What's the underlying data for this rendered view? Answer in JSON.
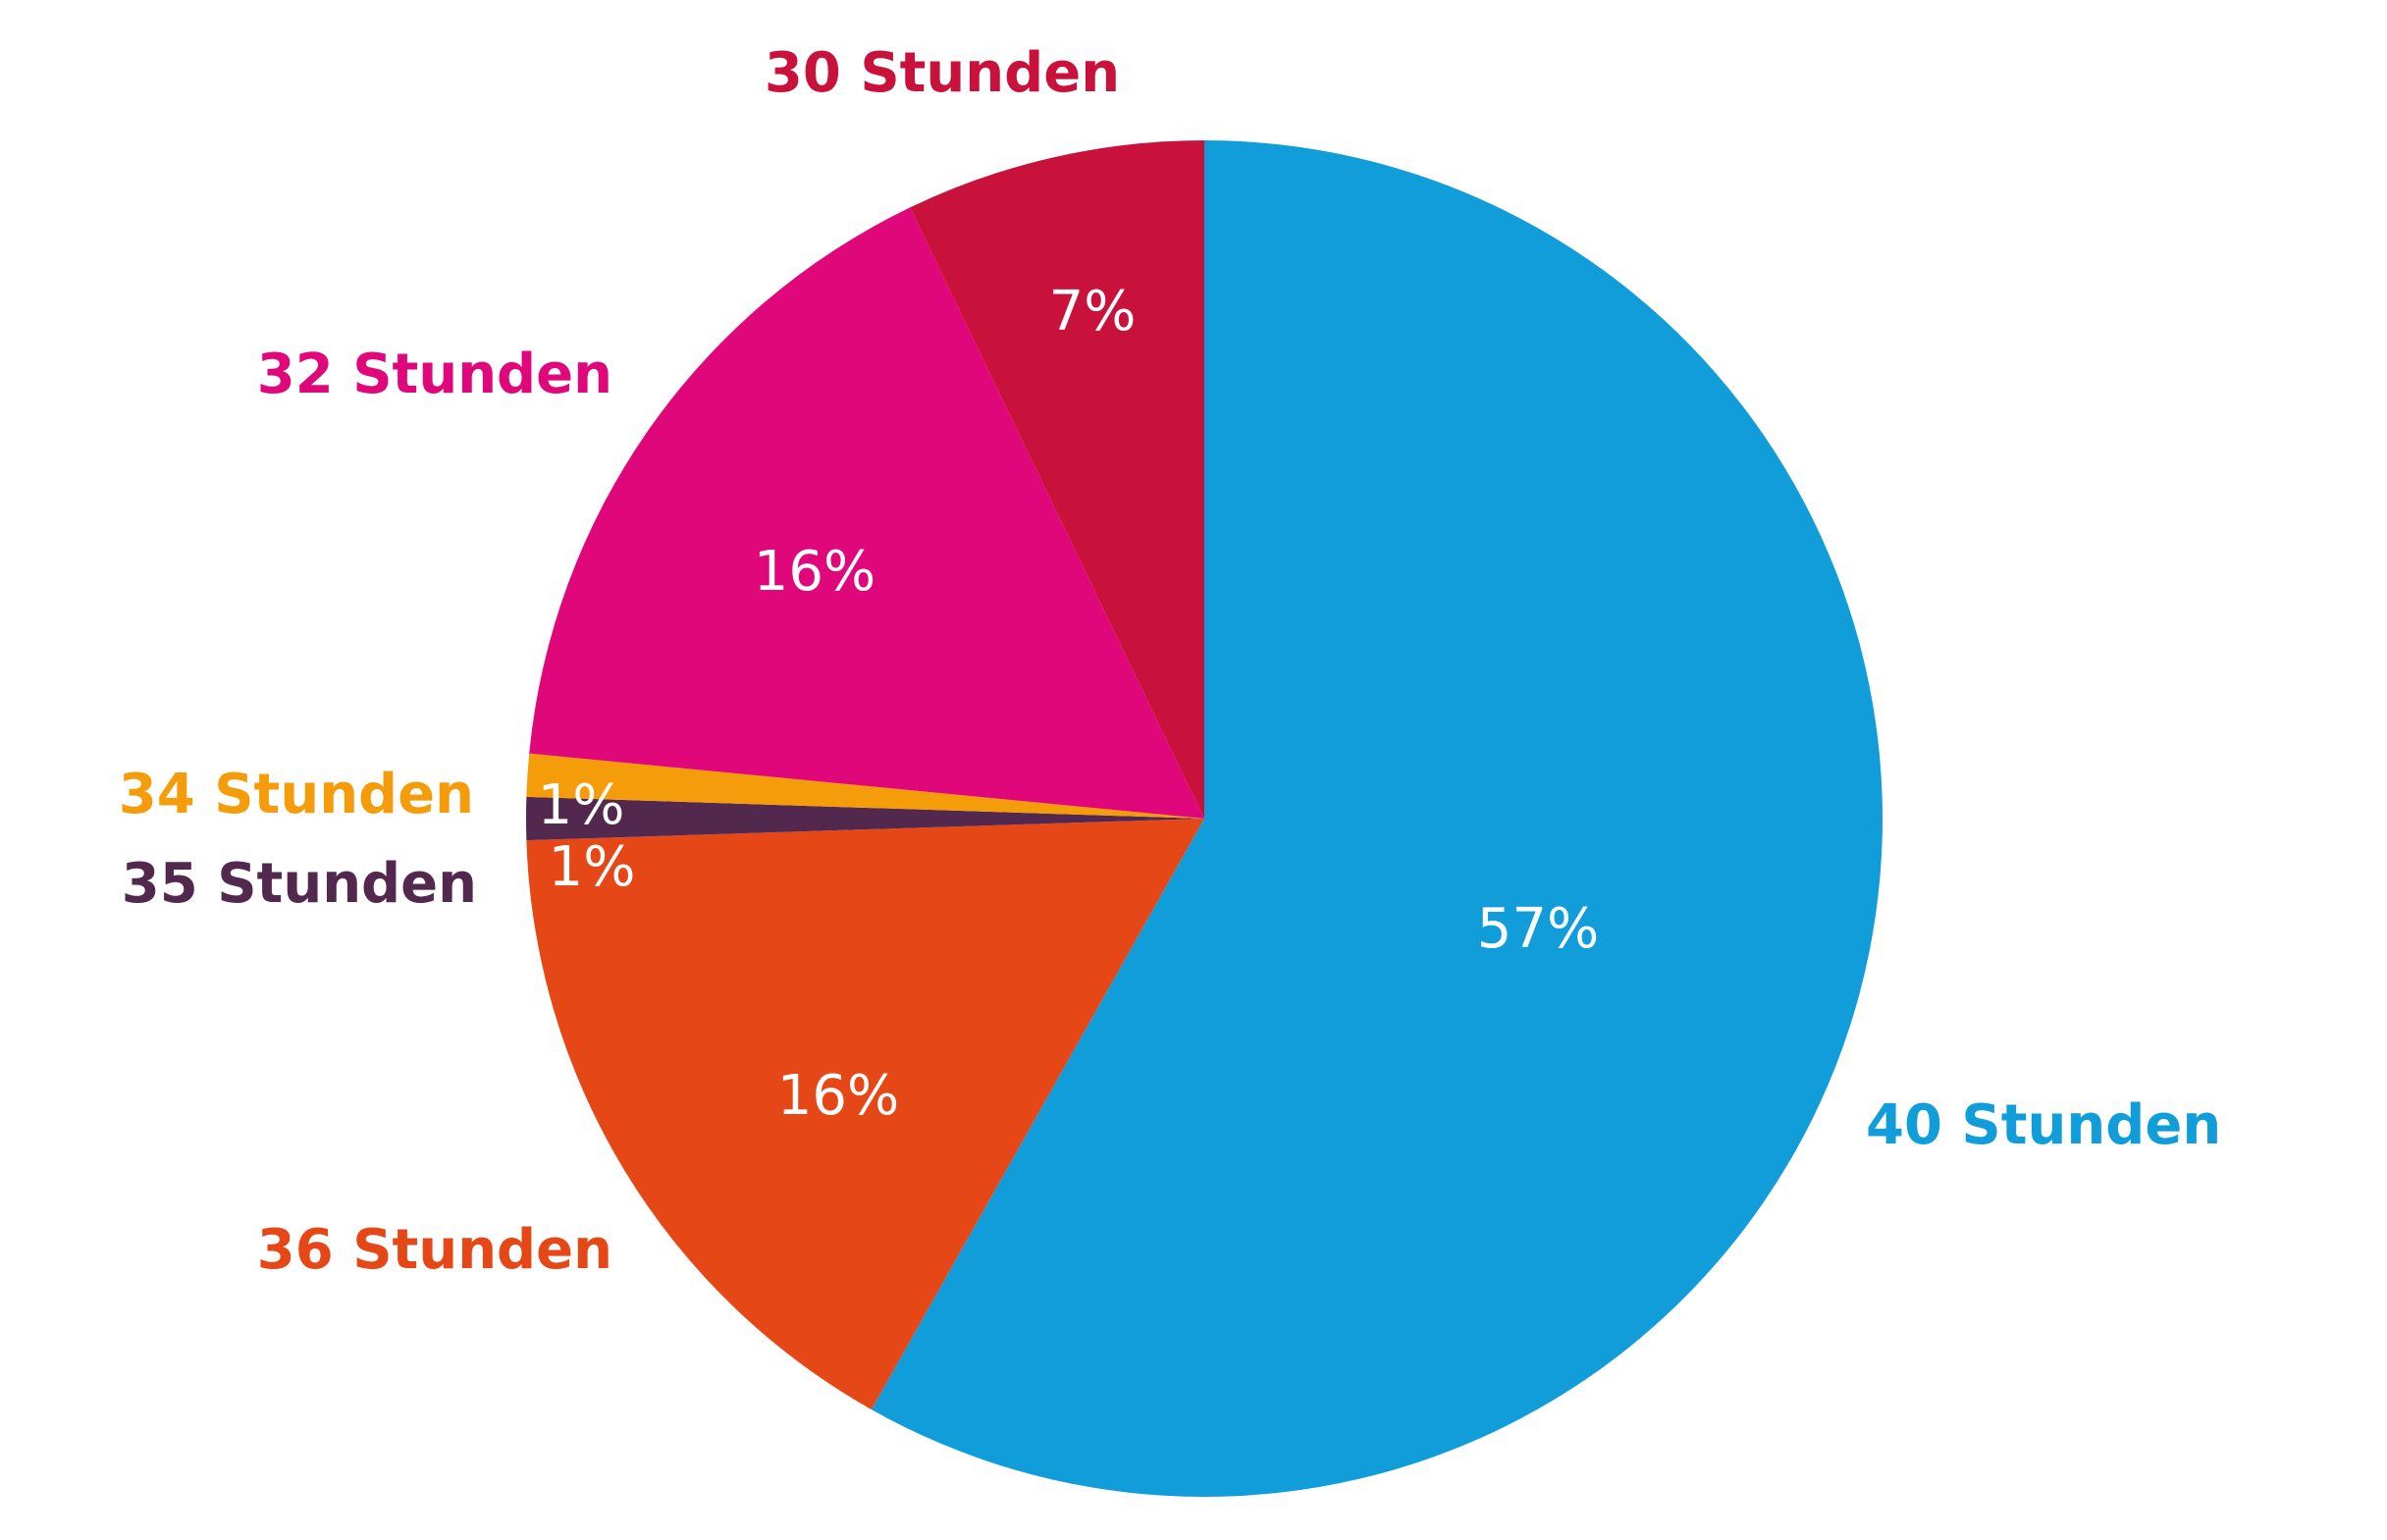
{
  "chart_data": {
    "type": "pie",
    "categories": [
      "40 Stunden",
      "36 Stunden",
      "35 Stunden",
      "34 Stunden",
      "32 Stunden",
      "30 Stunden"
    ],
    "values": [
      57,
      16,
      1,
      1,
      16,
      7
    ],
    "value_labels": [
      "57%",
      "16%",
      "1%",
      "1%",
      "16%",
      "7%"
    ],
    "colors": [
      "#109dd9",
      "#e64717",
      "#52284f",
      "#f59c0b",
      "#e0077a",
      "#c8123c"
    ]
  }
}
